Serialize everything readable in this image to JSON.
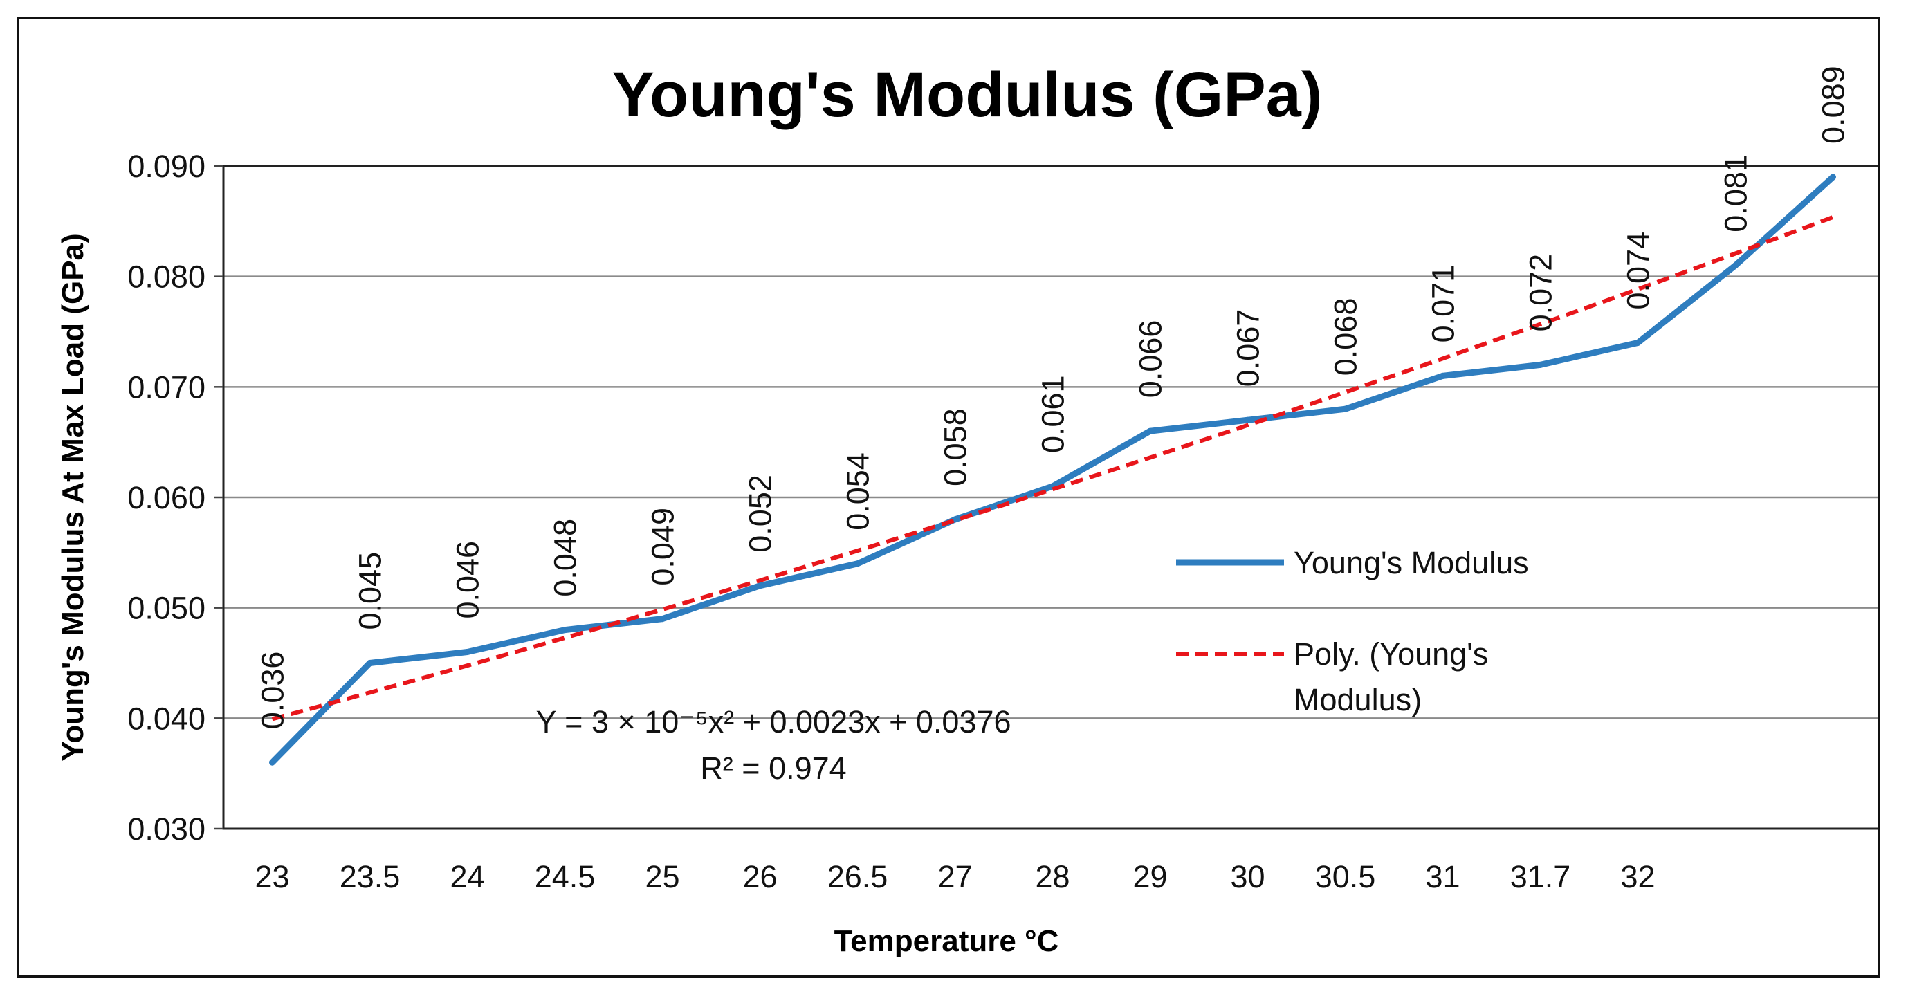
{
  "chart_data": {
    "type": "line",
    "title": "Young's Modulus (GPa)",
    "xlabel": "Temperature °C",
    "ylabel": "Young's Modulus At Max Load (GPa)",
    "ylim": [
      0.03,
      0.09
    ],
    "y_ticks": [
      "0.030",
      "0.040",
      "0.050",
      "0.060",
      "0.070",
      "0.080",
      "0.090"
    ],
    "y_tick_values": [
      0.03,
      0.04,
      0.05,
      0.06,
      0.07,
      0.08,
      0.09
    ],
    "grid": true,
    "categories": [
      "23",
      "23.5",
      "24",
      "24.5",
      "25",
      "26",
      "26.5",
      "27",
      "28",
      "29",
      "30",
      "30.5",
      "31",
      "31.7",
      "32",
      "",
      ""
    ],
    "series": [
      {
        "name": "Young's Modulus",
        "color": "#2e7dbf",
        "style": "solid",
        "values": [
          0.036,
          0.045,
          0.046,
          0.048,
          0.049,
          0.052,
          0.054,
          0.058,
          0.061,
          0.066,
          0.067,
          0.068,
          0.071,
          0.072,
          0.074,
          0.081,
          0.089
        ],
        "data_labels": [
          "0.036",
          "0.045",
          "0.046",
          "0.048",
          "0.049",
          "0.052",
          "0.054",
          "0.058",
          "0.061",
          "0.066",
          "0.067",
          "0.068",
          "0.071",
          "0.072",
          "0.074",
          "0.081",
          "0.089"
        ]
      },
      {
        "name": "Poly. (Young's Modulus)",
        "color": "#e8161b",
        "style": "dashed",
        "trendline": {
          "a": 3e-05,
          "b": 0.0023,
          "c": 0.0376
        }
      }
    ],
    "legend": {
      "position": "right",
      "entries": [
        {
          "label_lines": [
            "Young's Modulus"
          ]
        },
        {
          "label_lines": [
            "Poly. (Young's",
            "Modulus)"
          ]
        }
      ]
    },
    "equation": {
      "line1": "Y = 3 × 10⁻⁵x² + 0.0023x + 0.0376",
      "line2": "R² = 0.974"
    }
  }
}
